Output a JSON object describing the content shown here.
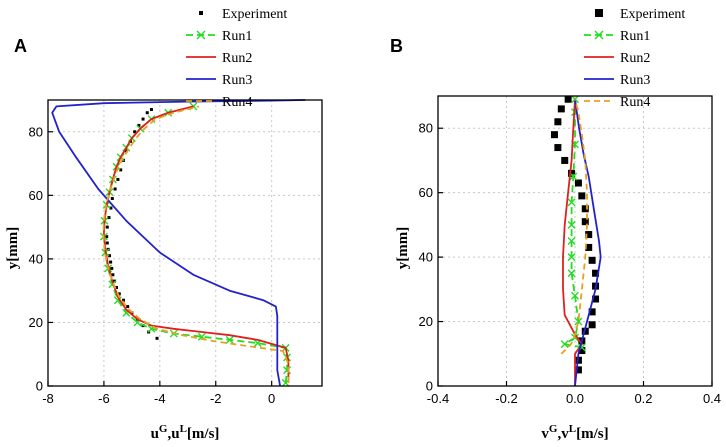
{
  "chart_data": [
    {
      "type": "line",
      "panel_label": "A",
      "xlabel_base1": "u",
      "xlabel_sup1": "G",
      "xlabel_mid": ",u",
      "xlabel_sup2": "L",
      "xlabel_tail": "[m/s]",
      "ylabel": "y[mm]",
      "xlim": [
        -8,
        1.8
      ],
      "ylim": [
        0,
        90
      ],
      "xticks": [
        -8,
        -6,
        -4,
        -2,
        0
      ],
      "yticks": [
        0,
        20,
        40,
        60,
        80
      ],
      "grid": true,
      "legend_position": "top",
      "series": [
        {
          "name": "Experiment",
          "style": "dots",
          "color": "#000000",
          "x": [
            -4.1,
            -4.4,
            -4.6,
            -4.8,
            -5.0,
            -5.15,
            -5.3,
            -5.45,
            -5.55,
            -5.62,
            -5.68,
            -5.72,
            -5.76,
            -5.8,
            -5.85,
            -5.88,
            -5.9,
            -5.88,
            -5.82,
            -5.75,
            -5.7,
            -5.6,
            -5.5,
            -5.4,
            -5.3,
            -5.2,
            -5.05,
            -4.9,
            -4.75,
            -4.6,
            -4.45,
            -4.3
          ],
          "y": [
            15,
            17,
            19,
            21,
            23,
            25,
            27,
            29,
            31,
            33,
            35,
            37,
            39,
            41,
            43,
            45,
            47,
            50,
            53,
            56,
            59,
            62,
            65,
            68,
            71,
            74,
            77,
            80,
            82,
            84,
            86,
            87
          ]
        },
        {
          "name": "Run1",
          "style": "dash-cross",
          "color": "#22dd22",
          "x": [
            0.5,
            0.55,
            0.55,
            0.5,
            -0.5,
            -1.5,
            -2.5,
            -3.5,
            -4.3,
            -4.8,
            -5.2,
            -5.5,
            -5.7,
            -5.85,
            -5.95,
            -6.0,
            -5.98,
            -5.9,
            -5.8,
            -5.68,
            -5.55,
            -5.4,
            -5.2,
            -5.0,
            -4.7,
            -4.3,
            -3.7,
            -2.8
          ],
          "y": [
            1,
            5,
            9,
            12,
            13.5,
            14.5,
            15.5,
            16.5,
            18,
            20,
            23,
            27,
            32,
            37,
            42,
            47,
            52,
            57,
            61,
            65,
            69,
            72,
            75,
            78,
            81,
            84,
            86,
            88
          ]
        },
        {
          "name": "Run2",
          "style": "solid",
          "color": "#e02020",
          "x": [
            0.6,
            0.6,
            0.5,
            -0.5,
            -1.5,
            -2.5,
            -3.5,
            -4.3,
            -4.8,
            -5.2,
            -5.5,
            -5.7,
            -5.85,
            -5.95,
            -6.0,
            -5.98,
            -5.9,
            -5.8,
            -5.68,
            -5.55,
            -5.4,
            -5.2,
            -5.0,
            -4.7,
            -4.3,
            -3.7,
            -2.8
          ],
          "y": [
            1,
            8,
            12,
            14.5,
            16,
            17,
            18,
            19,
            21,
            24,
            28,
            33,
            38,
            43,
            48,
            52,
            57,
            61,
            65,
            69,
            72,
            75,
            78,
            81,
            84,
            86,
            88
          ]
        },
        {
          "name": "Run3",
          "style": "solid",
          "color": "#2222cc",
          "x": [
            0.3,
            0.2,
            0.2,
            0.2,
            0.15,
            -0.3,
            -1.5,
            -2.8,
            -4.0,
            -5.2,
            -6.2,
            -7.0,
            -7.6,
            -7.85,
            -7.7,
            -6.0,
            -3.0,
            0.0,
            1.2
          ],
          "y": [
            0,
            5,
            15,
            22,
            25,
            27,
            30,
            35,
            42,
            52,
            62,
            72,
            80,
            86,
            88,
            89,
            89.5,
            89.8,
            90
          ]
        },
        {
          "name": "Run4",
          "style": "dashed",
          "color": "#e8a020",
          "x": [
            0.6,
            0.6,
            0.4,
            -0.8,
            -2.0,
            -3.2,
            -4.1,
            -4.7,
            -5.1,
            -5.45,
            -5.7,
            -5.88,
            -5.98,
            -6.02,
            -6.0,
            -5.92,
            -5.8,
            -5.65,
            -5.48,
            -5.3,
            -5.08,
            -4.85,
            -4.55,
            -4.15,
            -3.5,
            -2.6
          ],
          "y": [
            1,
            7,
            11,
            12.5,
            14,
            16,
            18,
            21,
            24,
            28,
            33,
            38,
            43,
            48,
            52,
            57,
            61,
            65,
            69,
            72,
            75,
            78,
            81,
            84,
            86,
            88
          ]
        }
      ]
    },
    {
      "type": "line",
      "panel_label": "B",
      "xlabel_base1": "v",
      "xlabel_sup1": "G",
      "xlabel_mid": ",v",
      "xlabel_sup2": "L",
      "xlabel_tail": "[m/s]",
      "ylabel": "y[mm]",
      "xlim": [
        -0.4,
        0.4
      ],
      "ylim": [
        0,
        90
      ],
      "xticks": [
        -0.4,
        -0.2,
        0.0,
        0.2,
        0.4
      ],
      "xtick_labels": [
        "-0.4",
        "-0.2",
        "0.0",
        "0.2",
        "0.4"
      ],
      "yticks": [
        0,
        20,
        40,
        60,
        80
      ],
      "grid": true,
      "legend_position": "top",
      "series": [
        {
          "name": "Experiment",
          "style": "squares",
          "color": "#000000",
          "x": [
            0.01,
            0.01,
            0.02,
            0.02,
            0.03,
            0.05,
            0.05,
            0.06,
            0.06,
            0.06,
            0.05,
            0.04,
            0.04,
            0.03,
            0.03,
            0.02,
            0.01,
            -0.01,
            -0.03,
            -0.05,
            -0.06,
            -0.05,
            -0.04,
            -0.02
          ],
          "y": [
            5,
            8,
            11,
            14,
            17,
            19,
            23,
            27,
            31,
            35,
            39,
            43,
            47,
            51,
            55,
            59,
            63,
            66,
            70,
            74,
            78,
            82,
            86,
            89
          ]
        },
        {
          "name": "Run1",
          "style": "dash-cross",
          "color": "#22dd22",
          "x": [
            0.02,
            -0.03,
            0.0,
            0.01,
            0.0,
            -0.01,
            -0.01,
            -0.01,
            -0.01,
            -0.01,
            -0.005,
            0.0,
            0.0,
            0.0
          ],
          "y": [
            12,
            13,
            15,
            20,
            28,
            35,
            40,
            45,
            50,
            57,
            65,
            75,
            85,
            89
          ]
        },
        {
          "name": "Run2",
          "style": "solid",
          "color": "#e02020",
          "x": [
            0.0,
            0.0,
            0.02,
            0.0,
            -0.03,
            -0.035,
            -0.035,
            -0.03,
            -0.02,
            -0.01,
            -0.005,
            0.0
          ],
          "y": [
            0,
            10,
            13,
            16,
            22,
            30,
            40,
            50,
            60,
            70,
            80,
            89
          ]
        },
        {
          "name": "Run3",
          "style": "solid",
          "color": "#2222cc",
          "x": [
            0.0,
            0.005,
            0.01,
            0.03,
            0.06,
            0.075,
            0.07,
            0.055,
            0.04,
            0.025,
            0.012,
            0.0
          ],
          "y": [
            0,
            5,
            10,
            18,
            30,
            40,
            45,
            55,
            65,
            72,
            80,
            89
          ]
        },
        {
          "name": "Run4",
          "style": "dashed",
          "color": "#e8a020",
          "x": [
            -0.04,
            -0.02,
            -0.005,
            0.01,
            0.02,
            0.03,
            0.035,
            0.035,
            0.03,
            0.02,
            0.01,
            0.0
          ],
          "y": [
            10,
            12,
            14,
            20,
            30,
            40,
            50,
            60,
            70,
            78,
            85,
            89
          ]
        }
      ]
    }
  ]
}
